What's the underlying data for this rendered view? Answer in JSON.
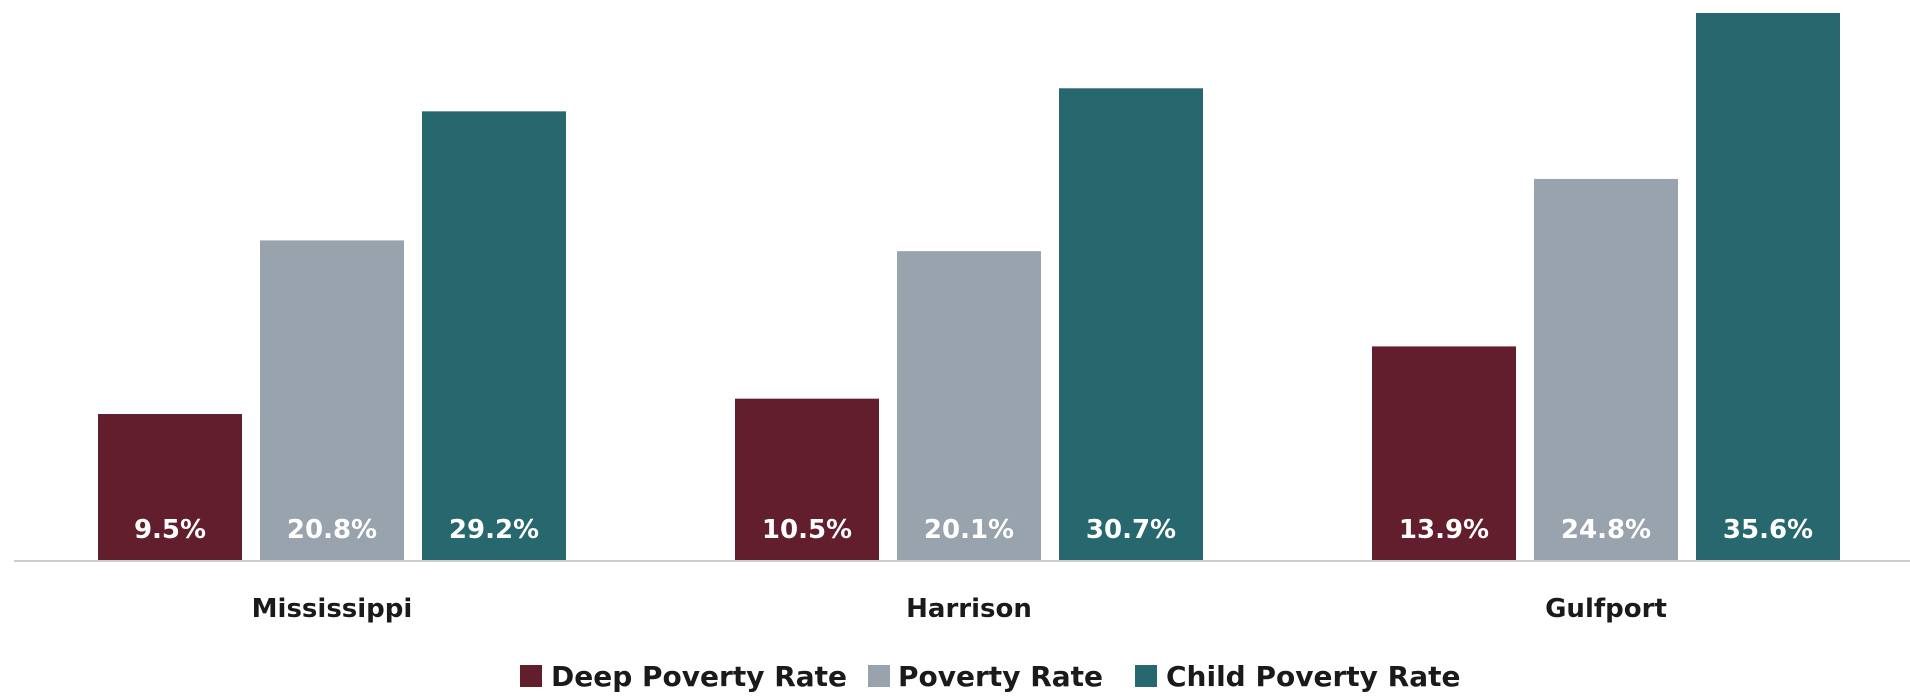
{
  "chart_data": {
    "type": "bar",
    "categories": [
      "Mississippi",
      "Harrison",
      "Gulfport"
    ],
    "series": [
      {
        "name": "Deep Poverty Rate",
        "color": "#621e2c",
        "values": [
          9.5,
          10.5,
          13.9
        ],
        "labels": [
          "9.5%",
          "10.5%",
          "13.9%"
        ]
      },
      {
        "name": "Poverty Rate",
        "color": "#99a3ad",
        "values": [
          20.8,
          20.1,
          24.8
        ],
        "labels": [
          "20.8%",
          "20.1%",
          "24.8%"
        ]
      },
      {
        "name": "Child Poverty Rate",
        "color": "#27676e",
        "values": [
          29.2,
          30.7,
          35.6
        ],
        "labels": [
          "29.2%",
          "30.7%",
          "35.6%"
        ]
      }
    ],
    "title": "",
    "xlabel": "",
    "ylabel": "",
    "ylim": [
      0,
      35.6
    ],
    "grid": false,
    "legend_position": "bottom",
    "axis_color": "#cccccc"
  }
}
